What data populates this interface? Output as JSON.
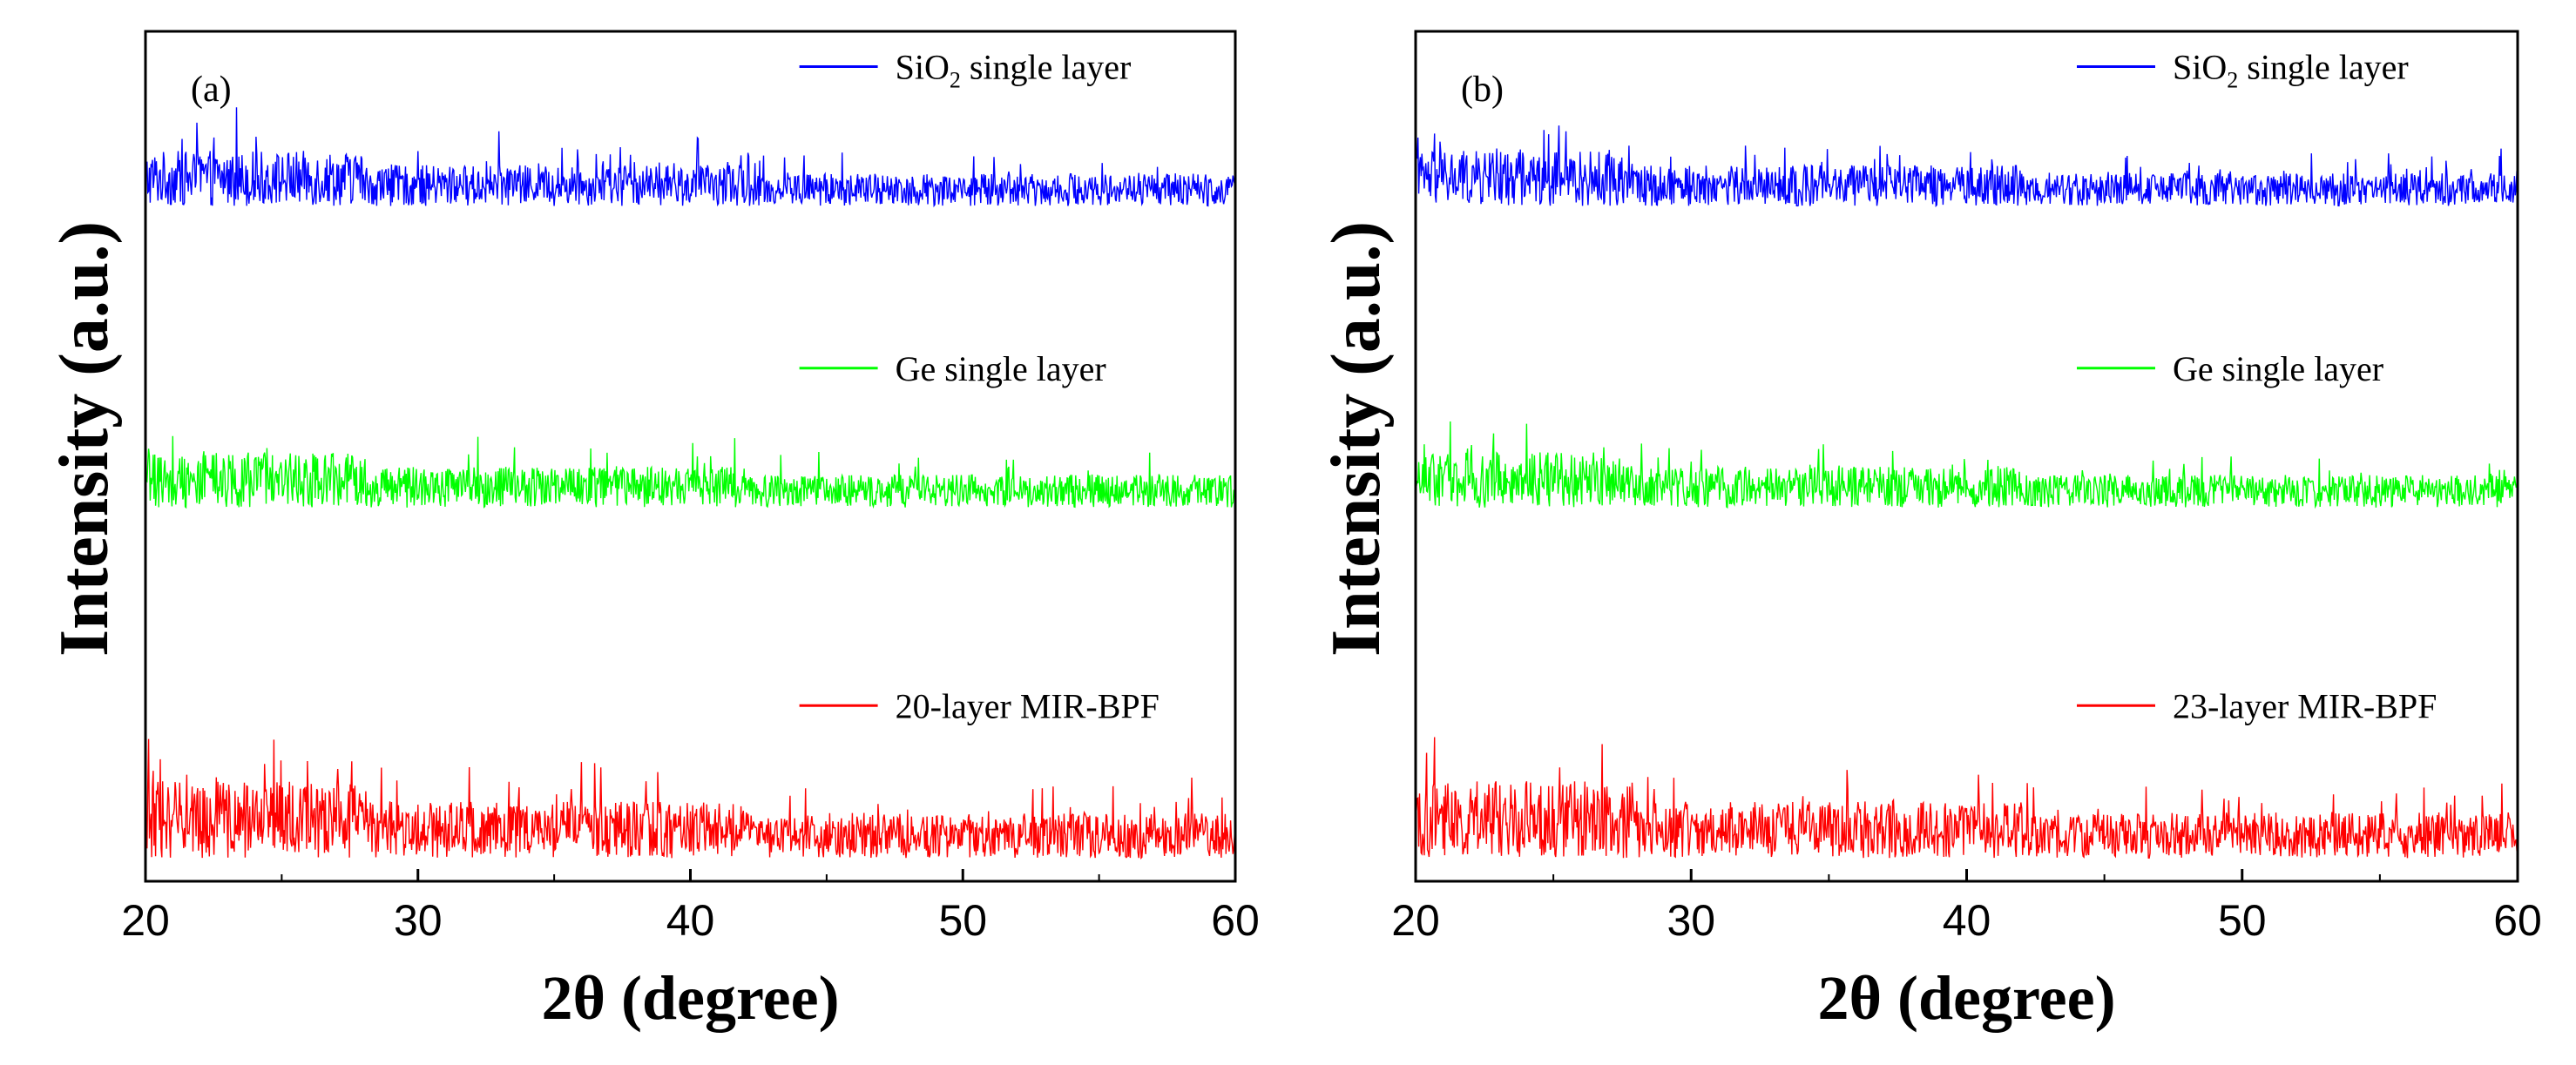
{
  "chart_data": [
    {
      "type": "line",
      "panel_label": "(a)",
      "xlabel": "2θ (degree)",
      "ylabel": "Intensity (a.u.)",
      "xlim": [
        20,
        60
      ],
      "xticks": [
        "20",
        "30",
        "40",
        "50",
        "60"
      ],
      "yticks_shown": false,
      "grid": false,
      "legend_position": "right-inline",
      "series": [
        {
          "name": "SiO",
          "subscript": "2",
          "name_suffix": " single layer",
          "color": "#0000ff",
          "baseline": 0.82,
          "noise_amplitude": 0.05
        },
        {
          "name": "Ge single layer",
          "subscript": "",
          "name_suffix": "",
          "color": "#00ff00",
          "baseline": 0.45,
          "noise_amplitude": 0.05
        },
        {
          "name": "20-layer MIR-BPF",
          "subscript": "",
          "name_suffix": "",
          "color": "#ff0000",
          "baseline": 0.02,
          "noise_amplitude": 0.07
        }
      ]
    },
    {
      "type": "line",
      "panel_label": "(b)",
      "xlabel": "2θ (degree)",
      "ylabel": "Intensity (a.u.)",
      "xlim": [
        20,
        60
      ],
      "xticks": [
        "20",
        "30",
        "40",
        "50",
        "60"
      ],
      "yticks_shown": false,
      "grid": false,
      "legend_position": "right-inline",
      "series": [
        {
          "name": "SiO",
          "subscript": "2",
          "name_suffix": " single layer",
          "color": "#0000ff",
          "baseline": 0.82,
          "noise_amplitude": 0.05
        },
        {
          "name": "Ge single layer",
          "subscript": "",
          "name_suffix": "",
          "color": "#00ff00",
          "baseline": 0.45,
          "noise_amplitude": 0.05
        },
        {
          "name": "23-layer MIR-BPF",
          "subscript": "",
          "name_suffix": "",
          "color": "#ff0000",
          "baseline": 0.02,
          "noise_amplitude": 0.07
        }
      ]
    }
  ]
}
